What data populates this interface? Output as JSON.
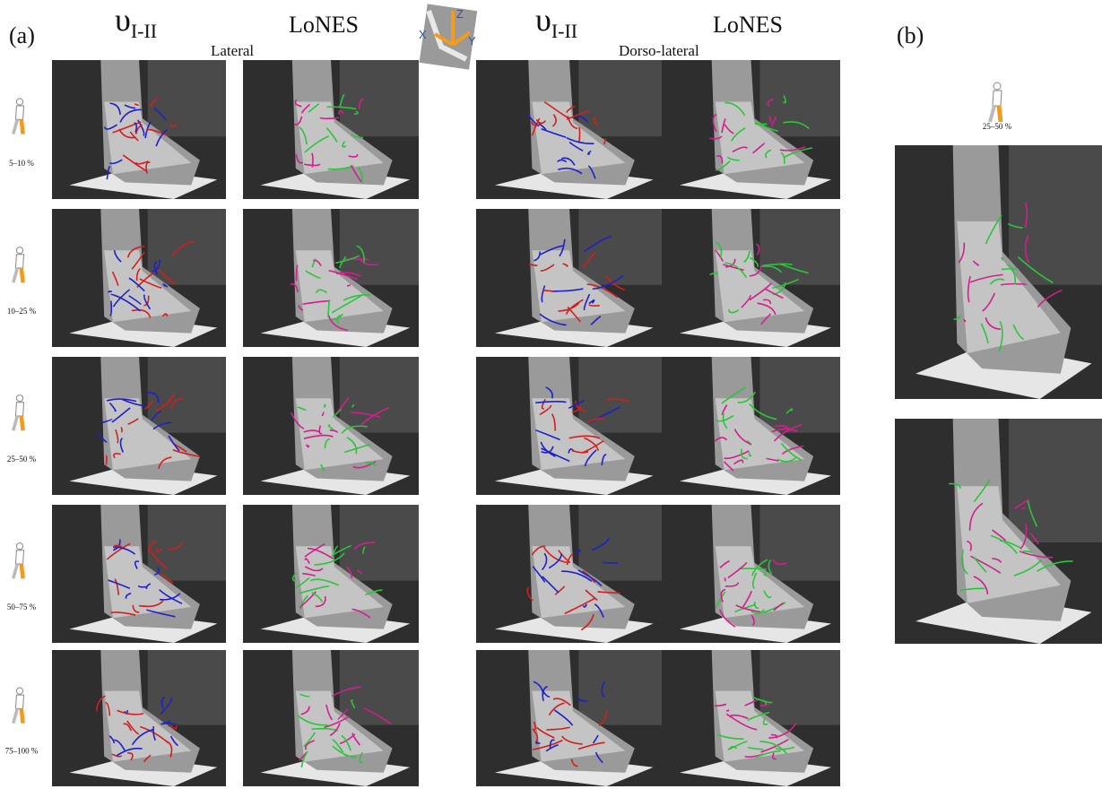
{
  "panel_a": {
    "label": "(a)",
    "axes": {
      "z": "Z",
      "x": "X",
      "y": "Y"
    },
    "views": [
      {
        "name": "Lateral",
        "columns": [
          {
            "symbol": "υ",
            "subscript": "I-II"
          },
          {
            "symbol": "LoNES"
          }
        ]
      },
      {
        "name": "Dorso-lateral",
        "columns": [
          {
            "symbol": "υ",
            "subscript": "I-II"
          },
          {
            "symbol": "LoNES"
          }
        ]
      }
    ],
    "rows": [
      "5–10 %",
      "10–25 %",
      "25–50 %",
      "50–75 %",
      "75–100 %"
    ]
  },
  "panel_b": {
    "label": "(b)",
    "phase": "25–50 %"
  }
}
